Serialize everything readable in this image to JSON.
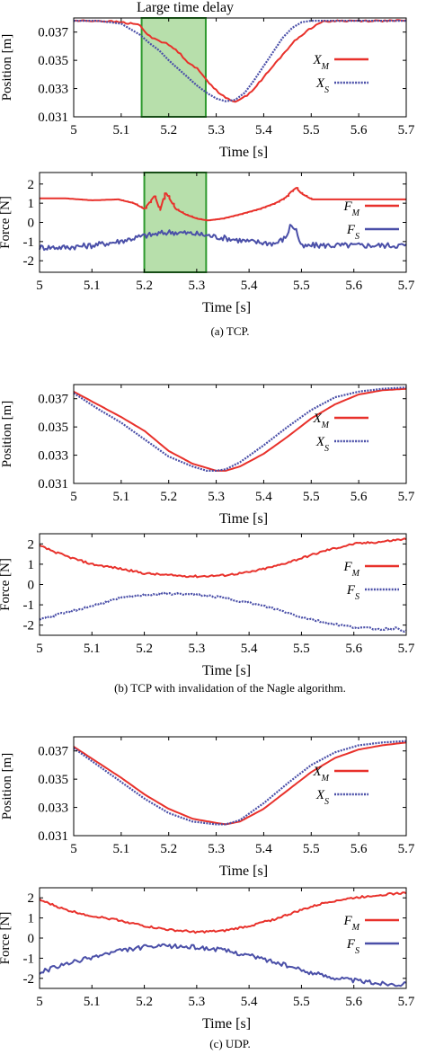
{
  "figure": {
    "captions": [
      "(a) TCP.",
      "(b) TCP with invalidation of the Nagle algorithm.",
      "(c) UDP."
    ],
    "annotation": "Large time delay",
    "colors": {
      "master": "#e8312b",
      "slave": "#4a4fa8",
      "highlight_fill": "#9fd48f",
      "highlight_stroke": "#2e9a2e"
    }
  },
  "chart_data": [
    {
      "id": "a-position",
      "type": "line",
      "ylabel": "Position [m]",
      "xlabel": "Time [s]",
      "xlim": [
        5,
        5.7
      ],
      "ylim": [
        0.031,
        0.038
      ],
      "xticks": [
        "5",
        "5.1",
        "5.2",
        "5.3",
        "5.4",
        "5.5",
        "5.6",
        "5.7"
      ],
      "yticks": [
        "0.031",
        "0.033",
        "0.035",
        "0.037"
      ],
      "highlight": [
        5.143,
        5.278
      ],
      "legend": [
        "X_M",
        "X_S"
      ],
      "series": [
        {
          "name": "X_M",
          "color": "#e8312b",
          "style": "solid",
          "x": [
            5,
            5.05,
            5.1,
            5.14,
            5.15,
            5.16,
            5.18,
            5.2,
            5.22,
            5.24,
            5.26,
            5.28,
            5.3,
            5.32,
            5.34,
            5.36,
            5.38,
            5.4,
            5.42,
            5.44,
            5.46,
            5.48,
            5.5,
            5.52,
            5.55,
            5.6,
            5.65,
            5.7
          ],
          "y": [
            0.0378,
            0.0378,
            0.0377,
            0.0375,
            0.037,
            0.0367,
            0.0364,
            0.0361,
            0.0356,
            0.0349,
            0.0344,
            0.0336,
            0.0329,
            0.0323,
            0.0321,
            0.0324,
            0.033,
            0.0338,
            0.0346,
            0.0354,
            0.0362,
            0.0368,
            0.0373,
            0.0377,
            0.0378,
            0.0378,
            0.0378,
            0.0378
          ]
        },
        {
          "name": "X_S",
          "color": "#4a4fa8",
          "style": "dotted",
          "x": [
            5,
            5.05,
            5.1,
            5.14,
            5.16,
            5.18,
            5.2,
            5.22,
            5.24,
            5.26,
            5.28,
            5.3,
            5.32,
            5.34,
            5.36,
            5.38,
            5.4,
            5.42,
            5.44,
            5.46,
            5.48,
            5.5,
            5.55,
            5.6,
            5.65,
            5.7
          ],
          "y": [
            0.0378,
            0.0378,
            0.0376,
            0.0368,
            0.0362,
            0.0357,
            0.035,
            0.0344,
            0.0338,
            0.0332,
            0.0327,
            0.0323,
            0.0321,
            0.0322,
            0.0327,
            0.0336,
            0.0346,
            0.0356,
            0.0366,
            0.0373,
            0.0377,
            0.0378,
            0.0378,
            0.0378,
            0.0378,
            0.0378
          ]
        }
      ]
    },
    {
      "id": "a-force",
      "type": "line",
      "ylabel": "Force [N]",
      "xlabel": "Time [s]",
      "xlim": [
        5,
        5.7
      ],
      "ylim": [
        -2.6,
        2.6
      ],
      "xticks": [
        "5",
        "5.1",
        "5.2",
        "5.3",
        "5.4",
        "5.5",
        "5.6",
        "5.7"
      ],
      "yticks": [
        "2",
        "1",
        "0",
        "-1",
        "-2"
      ],
      "highlight": [
        5.2,
        5.318
      ],
      "legend": [
        "F_M",
        "F_S"
      ],
      "series": [
        {
          "name": "F_M",
          "color": "#e8312b",
          "style": "solid",
          "x": [
            5,
            5.05,
            5.1,
            5.15,
            5.18,
            5.2,
            5.22,
            5.23,
            5.24,
            5.26,
            5.28,
            5.3,
            5.32,
            5.35,
            5.38,
            5.42,
            5.45,
            5.47,
            5.48,
            5.49,
            5.5,
            5.52,
            5.55,
            5.6,
            5.65,
            5.7
          ],
          "y": [
            1.25,
            1.25,
            1.15,
            1.2,
            1.0,
            0.7,
            1.4,
            0.6,
            1.6,
            0.7,
            0.4,
            0.2,
            0.1,
            0.2,
            0.4,
            0.7,
            1.0,
            1.3,
            1.6,
            1.8,
            1.5,
            1.2,
            1.2,
            1.2,
            1.2,
            1.2
          ]
        },
        {
          "name": "F_S",
          "color": "#4a4fa8",
          "style": "solid",
          "x": [
            5,
            5.05,
            5.1,
            5.15,
            5.2,
            5.25,
            5.3,
            5.35,
            5.4,
            5.45,
            5.47,
            5.48,
            5.49,
            5.5,
            5.52,
            5.55,
            5.6,
            5.65,
            5.7
          ],
          "y": [
            -1.3,
            -1.3,
            -1.2,
            -1.0,
            -0.7,
            -0.5,
            -0.6,
            -0.8,
            -1.0,
            -1.1,
            -0.8,
            -0.1,
            -0.4,
            -1.3,
            -1.2,
            -1.2,
            -1.2,
            -1.2,
            -1.2
          ]
        }
      ]
    },
    {
      "id": "b-position",
      "type": "line",
      "ylabel": "Position [m]",
      "xlabel": "Time [s]",
      "xlim": [
        5,
        5.7
      ],
      "ylim": [
        0.031,
        0.038
      ],
      "xticks": [
        "5",
        "5.1",
        "5.2",
        "5.3",
        "5.4",
        "5.5",
        "5.6",
        "5.7"
      ],
      "yticks": [
        "0.031",
        "0.033",
        "0.035",
        "0.037"
      ],
      "legend": [
        "X_M",
        "X_S"
      ],
      "series": [
        {
          "name": "X_M",
          "color": "#e8312b",
          "style": "solid",
          "x": [
            5,
            5.05,
            5.1,
            5.15,
            5.2,
            5.25,
            5.28,
            5.3,
            5.32,
            5.35,
            5.4,
            5.45,
            5.5,
            5.55,
            5.6,
            5.65,
            5.7
          ],
          "y": [
            0.0375,
            0.0366,
            0.0357,
            0.0347,
            0.0333,
            0.0324,
            0.0321,
            0.0319,
            0.0319,
            0.0322,
            0.0331,
            0.0343,
            0.0356,
            0.0366,
            0.0373,
            0.0376,
            0.0377
          ]
        },
        {
          "name": "X_S",
          "color": "#4a4fa8",
          "style": "dotted",
          "x": [
            5,
            5.05,
            5.1,
            5.15,
            5.2,
            5.25,
            5.28,
            5.3,
            5.32,
            5.35,
            5.4,
            5.45,
            5.5,
            5.55,
            5.6,
            5.65,
            5.7
          ],
          "y": [
            0.0374,
            0.0363,
            0.0353,
            0.0341,
            0.0329,
            0.0322,
            0.0319,
            0.0319,
            0.032,
            0.0325,
            0.0337,
            0.035,
            0.0362,
            0.0371,
            0.0375,
            0.0377,
            0.0378
          ]
        }
      ]
    },
    {
      "id": "b-force",
      "type": "line",
      "ylabel": "Force [N]",
      "xlabel": "Time [s]",
      "xlim": [
        5,
        5.7
      ],
      "ylim": [
        -2.5,
        2.5
      ],
      "xticks": [
        "5",
        "5.1",
        "5.2",
        "5.3",
        "5.4",
        "5.5",
        "5.6",
        "5.7"
      ],
      "yticks": [
        "2",
        "1",
        "0",
        "-1",
        "-2"
      ],
      "legend": [
        "F_M",
        "F_S"
      ],
      "series": [
        {
          "name": "F_M",
          "color": "#e8312b",
          "style": "solid",
          "x": [
            5,
            5.05,
            5.1,
            5.15,
            5.2,
            5.25,
            5.3,
            5.35,
            5.4,
            5.45,
            5.5,
            5.55,
            5.6,
            5.65,
            5.7
          ],
          "y": [
            1.9,
            1.4,
            1.0,
            0.8,
            0.55,
            0.45,
            0.4,
            0.45,
            0.6,
            0.9,
            1.3,
            1.7,
            2.0,
            2.1,
            2.25
          ]
        },
        {
          "name": "F_S",
          "color": "#4a4fa8",
          "style": "dotted",
          "x": [
            5,
            5.05,
            5.1,
            5.15,
            5.2,
            5.25,
            5.3,
            5.35,
            5.4,
            5.45,
            5.5,
            5.55,
            5.6,
            5.65,
            5.68,
            5.7
          ],
          "y": [
            -1.7,
            -1.4,
            -1.05,
            -0.7,
            -0.5,
            -0.45,
            -0.5,
            -0.65,
            -0.9,
            -1.2,
            -1.6,
            -1.9,
            -2.1,
            -2.2,
            -2.15,
            -2.3
          ]
        }
      ]
    },
    {
      "id": "c-position",
      "type": "line",
      "ylabel": "Position [m]",
      "xlabel": "Time [s]",
      "xlim": [
        5,
        5.7
      ],
      "ylim": [
        0.031,
        0.038
      ],
      "xticks": [
        "5",
        "5.1",
        "5.2",
        "5.3",
        "5.4",
        "5.5",
        "5.6",
        "5.7"
      ],
      "yticks": [
        "0.031",
        "0.033",
        "0.035",
        "0.037"
      ],
      "legend": [
        "X_M",
        "X_S"
      ],
      "series": [
        {
          "name": "X_M",
          "color": "#e8312b",
          "style": "solid",
          "x": [
            5,
            5.05,
            5.1,
            5.15,
            5.2,
            5.25,
            5.3,
            5.32,
            5.35,
            5.4,
            5.45,
            5.5,
            5.55,
            5.6,
            5.65,
            5.7
          ],
          "y": [
            0.0373,
            0.0362,
            0.0351,
            0.0339,
            0.0329,
            0.0322,
            0.0319,
            0.0318,
            0.032,
            0.0329,
            0.0342,
            0.0355,
            0.0365,
            0.0371,
            0.0374,
            0.0376
          ]
        },
        {
          "name": "X_S",
          "color": "#4a4fa8",
          "style": "dotted",
          "x": [
            5,
            5.05,
            5.1,
            5.15,
            5.2,
            5.25,
            5.3,
            5.32,
            5.35,
            5.4,
            5.45,
            5.5,
            5.55,
            5.6,
            5.65,
            5.7
          ],
          "y": [
            0.0372,
            0.036,
            0.0348,
            0.0336,
            0.0326,
            0.032,
            0.0318,
            0.0318,
            0.0321,
            0.0333,
            0.0347,
            0.036,
            0.0369,
            0.0374,
            0.0376,
            0.0377
          ]
        }
      ]
    },
    {
      "id": "c-force",
      "type": "line",
      "ylabel": "Force [N]",
      "xlabel": "Time [s]",
      "xlim": [
        5,
        5.7
      ],
      "ylim": [
        -2.5,
        2.5
      ],
      "xticks": [
        "5",
        "5.1",
        "5.2",
        "5.3",
        "5.4",
        "5.5",
        "5.6",
        "5.7"
      ],
      "yticks": [
        "2",
        "1",
        "0",
        "-1",
        "-2"
      ],
      "legend": [
        "F_M",
        "F_S"
      ],
      "series": [
        {
          "name": "F_M",
          "color": "#e8312b",
          "style": "solid",
          "x": [
            5,
            5.05,
            5.1,
            5.15,
            5.2,
            5.25,
            5.3,
            5.35,
            5.4,
            5.45,
            5.5,
            5.55,
            5.6,
            5.65,
            5.7
          ],
          "y": [
            1.9,
            1.4,
            1.1,
            0.9,
            0.6,
            0.4,
            0.3,
            0.35,
            0.6,
            0.95,
            1.4,
            1.8,
            2.0,
            2.15,
            2.25
          ]
        },
        {
          "name": "F_S",
          "color": "#4a4fa8",
          "style": "solid",
          "x": [
            5,
            5.05,
            5.1,
            5.15,
            5.2,
            5.25,
            5.3,
            5.35,
            5.4,
            5.45,
            5.5,
            5.55,
            5.6,
            5.65,
            5.7
          ],
          "y": [
            -1.7,
            -1.3,
            -0.95,
            -0.65,
            -0.45,
            -0.4,
            -0.45,
            -0.6,
            -0.85,
            -1.2,
            -1.6,
            -1.9,
            -2.1,
            -2.25,
            -2.3
          ]
        }
      ]
    }
  ]
}
